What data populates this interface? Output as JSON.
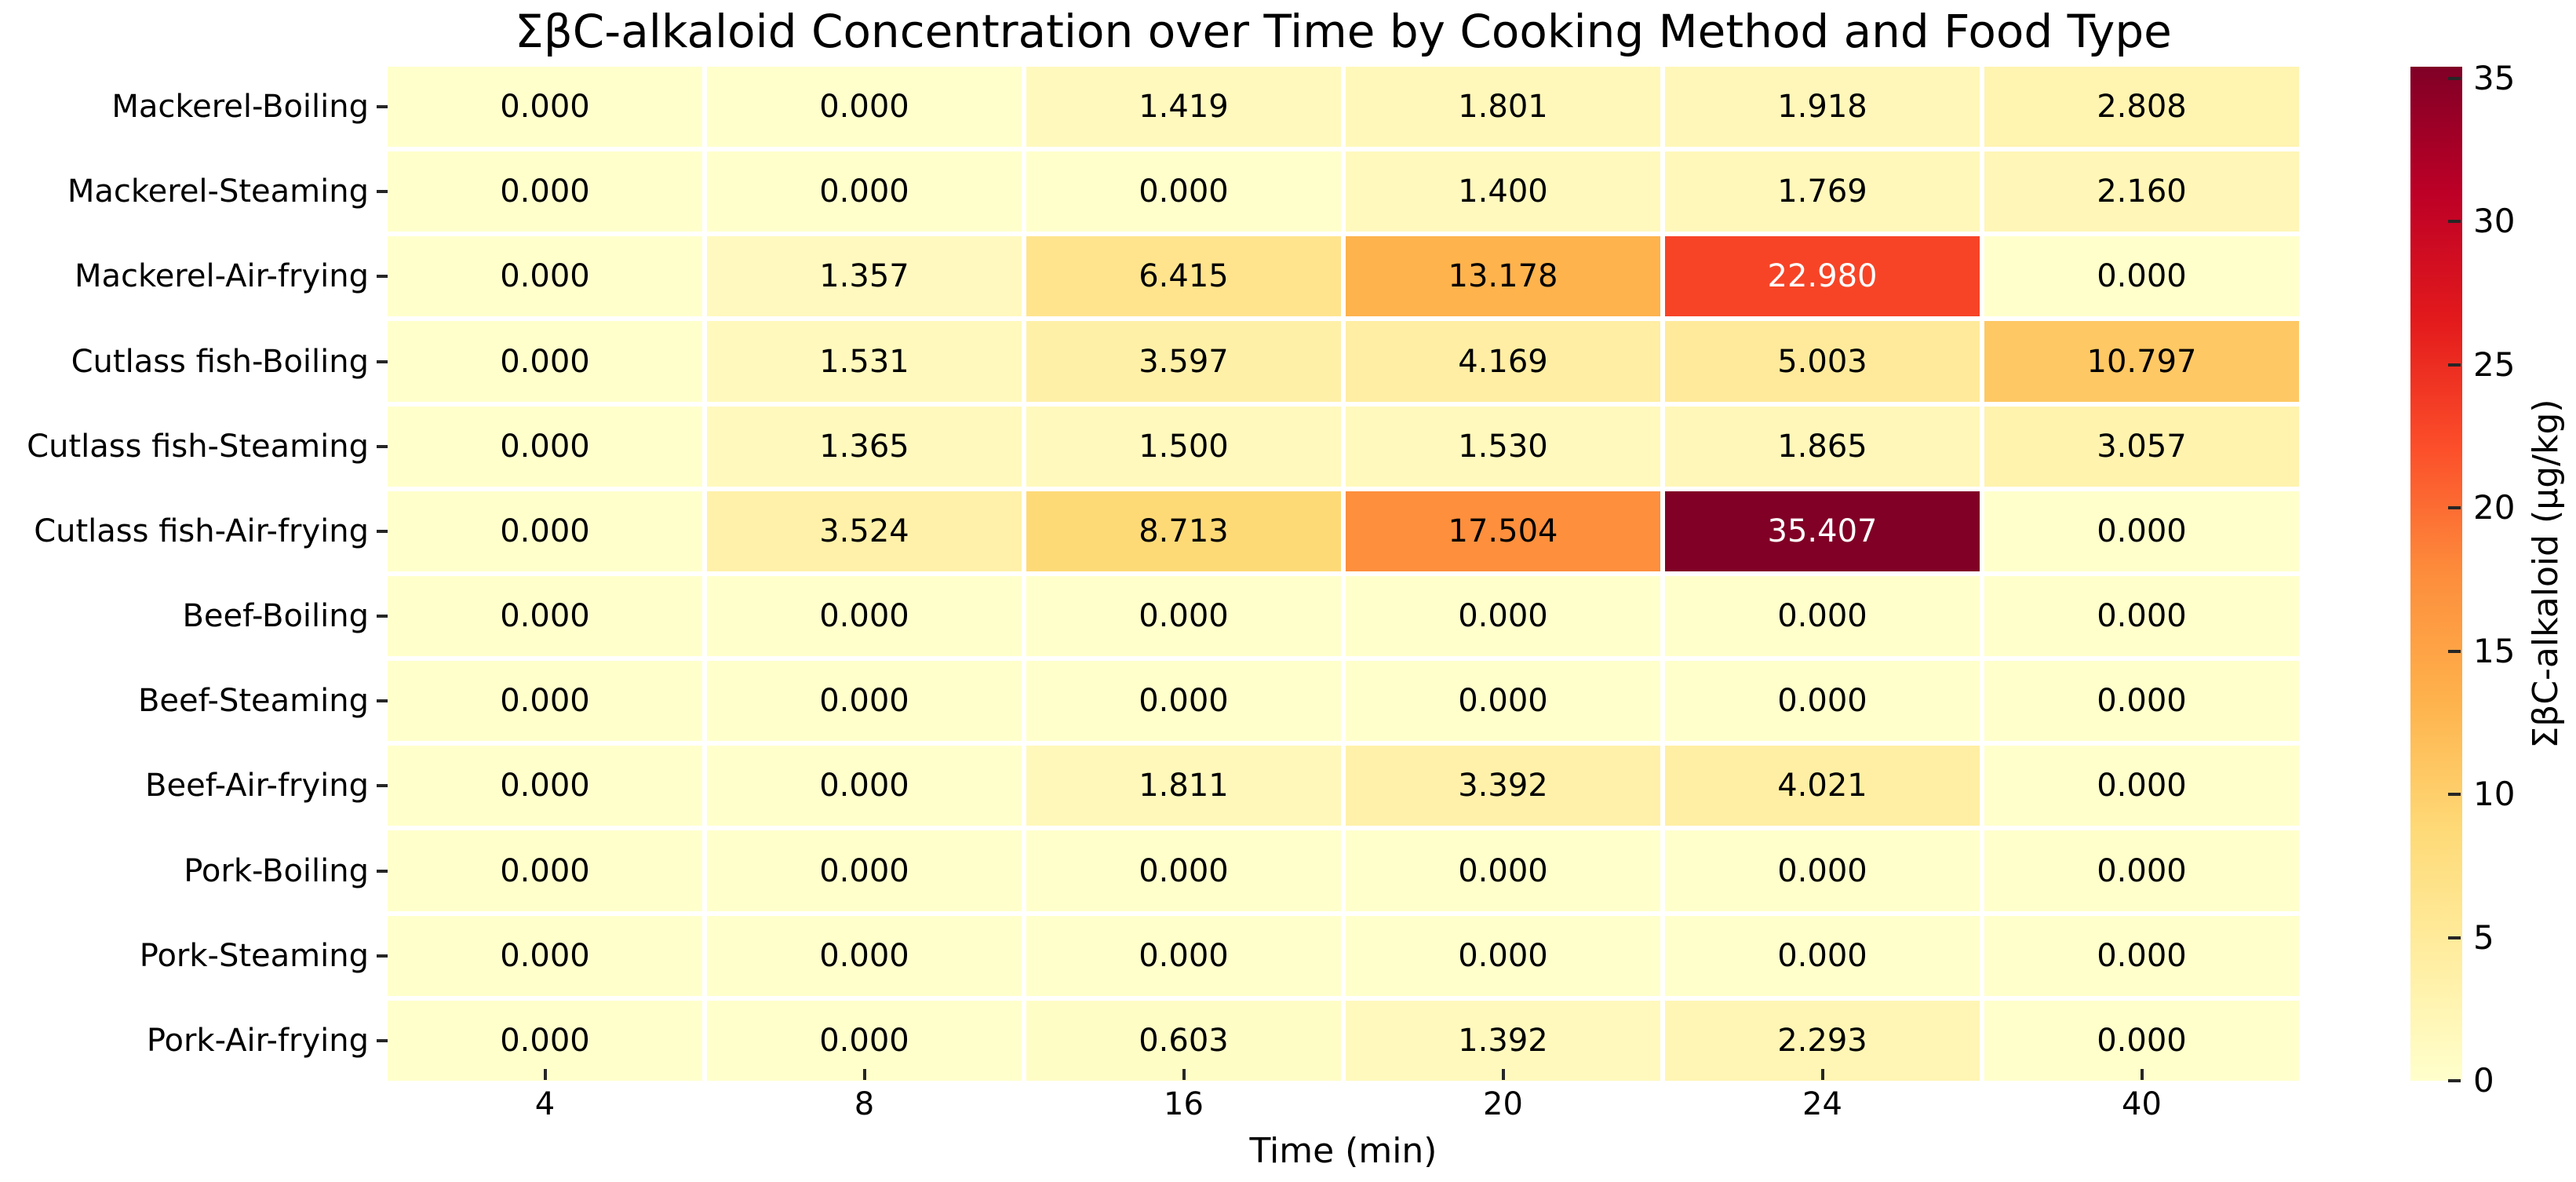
{
  "chart_data": {
    "type": "heatmap",
    "title": "ΣβC-alkaloid Concentration over Time by Cooking Method and Food Type",
    "xlabel": "Time (min)",
    "ylabel": "",
    "columns": [
      "4",
      "8",
      "16",
      "20",
      "24",
      "40"
    ],
    "rows": [
      "Mackerel-Boiling",
      "Mackerel-Steaming",
      "Mackerel-Air-frying",
      "Cutlass fish-Boiling",
      "Cutlass fish-Steaming",
      "Cutlass fish-Air-frying",
      "Beef-Boiling",
      "Beef-Steaming",
      "Beef-Air-frying",
      "Pork-Boiling",
      "Pork-Steaming",
      "Pork-Air-frying"
    ],
    "values": [
      [
        0.0,
        0.0,
        1.419,
        1.801,
        1.918,
        2.808
      ],
      [
        0.0,
        0.0,
        0.0,
        1.4,
        1.769,
        2.16
      ],
      [
        0.0,
        1.357,
        6.415,
        13.178,
        22.98,
        0.0
      ],
      [
        0.0,
        1.531,
        3.597,
        4.169,
        5.003,
        10.797
      ],
      [
        0.0,
        1.365,
        1.5,
        1.53,
        1.865,
        3.057
      ],
      [
        0.0,
        3.524,
        8.713,
        17.504,
        35.407,
        0.0
      ],
      [
        0.0,
        0.0,
        0.0,
        0.0,
        0.0,
        0.0
      ],
      [
        0.0,
        0.0,
        0.0,
        0.0,
        0.0,
        0.0
      ],
      [
        0.0,
        0.0,
        1.811,
        3.392,
        4.021,
        0.0
      ],
      [
        0.0,
        0.0,
        0.0,
        0.0,
        0.0,
        0.0
      ],
      [
        0.0,
        0.0,
        0.0,
        0.0,
        0.0,
        0.0
      ],
      [
        0.0,
        0.0,
        0.603,
        1.392,
        2.293,
        0.0
      ]
    ],
    "value_decimals": 3,
    "grid_on": true,
    "grid_line_color": "#ffffff",
    "annotation_text_dark": "#000000",
    "annotation_text_light": "#ffffff",
    "tick_color": "#262626",
    "colorbar": {
      "label": "ΣβC-alkaloid (µg/kg)",
      "ticks": [
        0,
        5,
        10,
        15,
        20,
        25,
        30,
        35
      ],
      "vmin": 0,
      "vmax": 35.407,
      "colormap": "YlOrRd",
      "colormap_stops": [
        "#ffffcc",
        "#ffeda0",
        "#fed976",
        "#feb24c",
        "#fd8d3c",
        "#fc4e2a",
        "#e31a1c",
        "#bd0026",
        "#800026"
      ],
      "legend_position": "right"
    }
  }
}
